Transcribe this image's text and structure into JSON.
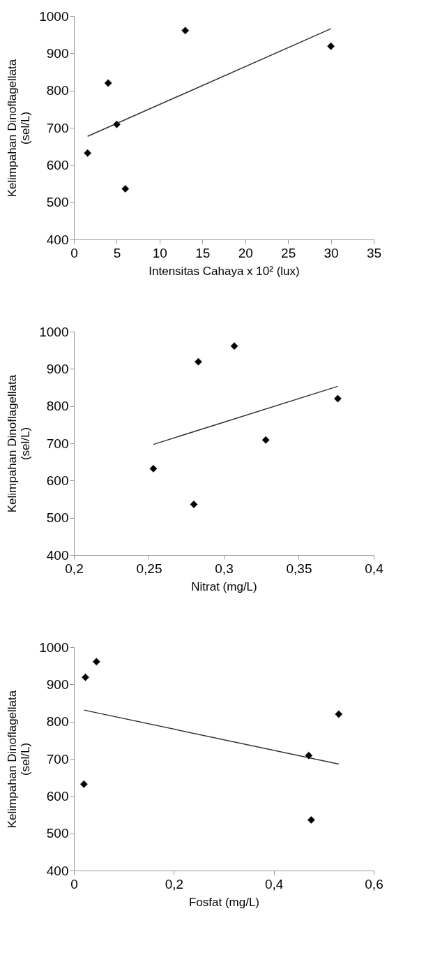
{
  "chart_data": [
    {
      "type": "scatter",
      "xlabel": "Intensitas Cahaya x 10² (lux)",
      "ylabel": "Kelimpahan Dinoflagellata\n(sel/L)",
      "xlim": [
        0,
        35
      ],
      "xticks": [
        0,
        5,
        10,
        15,
        20,
        25,
        30,
        35
      ],
      "ylim": [
        400,
        1000
      ],
      "yticks": [
        400,
        500,
        600,
        700,
        800,
        900,
        1000
      ],
      "series": [
        {
          "marker": "diamond",
          "color": "#000000",
          "x": [
            1.6,
            4,
            5,
            6,
            13,
            30
          ],
          "values": [
            632,
            820,
            709,
            536,
            961,
            919
          ]
        },
        {
          "type": "line",
          "color": "#333333",
          "x": [
            1.6,
            30
          ],
          "values": [
            677,
            966
          ]
        }
      ]
    },
    {
      "type": "scatter",
      "xlabel": "Nitrat (mg/L)",
      "ylabel": "Kelimpahan Dinoflagellata\n(sel/L)",
      "xlim": [
        0.2,
        0.4
      ],
      "xticks": [
        {
          "value": 0.2,
          "label": "0,2"
        },
        {
          "value": 0.25,
          "label": "0,25"
        },
        {
          "value": 0.3,
          "label": "0,3"
        },
        {
          "value": 0.35,
          "label": "0,35"
        },
        {
          "value": 0.4,
          "label": "0,4"
        }
      ],
      "ylim": [
        400,
        1000
      ],
      "yticks": [
        400,
        500,
        600,
        700,
        800,
        900,
        1000
      ],
      "series": [
        {
          "marker": "diamond",
          "color": "#000000",
          "x": [
            0.253,
            0.28,
            0.283,
            0.307,
            0.328,
            0.376
          ],
          "values": [
            632,
            536,
            919,
            961,
            709,
            820
          ]
        },
        {
          "type": "line",
          "color": "#333333",
          "x": [
            0.253,
            0.376
          ],
          "values": [
            697,
            853
          ]
        }
      ]
    },
    {
      "type": "scatter",
      "xlabel": "Fosfat (mg/L)",
      "ylabel": "Kelimpahan Dinoflagellata\n(sel/L)",
      "xlim": [
        0,
        0.6
      ],
      "xticks": [
        0,
        {
          "value": 0.2,
          "label": "0,2"
        },
        {
          "value": 0.4,
          "label": "0,4"
        },
        {
          "value": 0.6,
          "label": "0,6"
        }
      ],
      "ylim": [
        400,
        1000
      ],
      "yticks": [
        400,
        500,
        600,
        700,
        800,
        900,
        1000
      ],
      "series": [
        {
          "marker": "diamond",
          "color": "#000000",
          "x": [
            0.02,
            0.023,
            0.045,
            0.47,
            0.475,
            0.53
          ],
          "values": [
            632,
            919,
            961,
            709,
            536,
            820
          ]
        },
        {
          "type": "line",
          "color": "#333333",
          "x": [
            0.02,
            0.53
          ],
          "values": [
            831,
            686
          ]
        }
      ]
    }
  ]
}
